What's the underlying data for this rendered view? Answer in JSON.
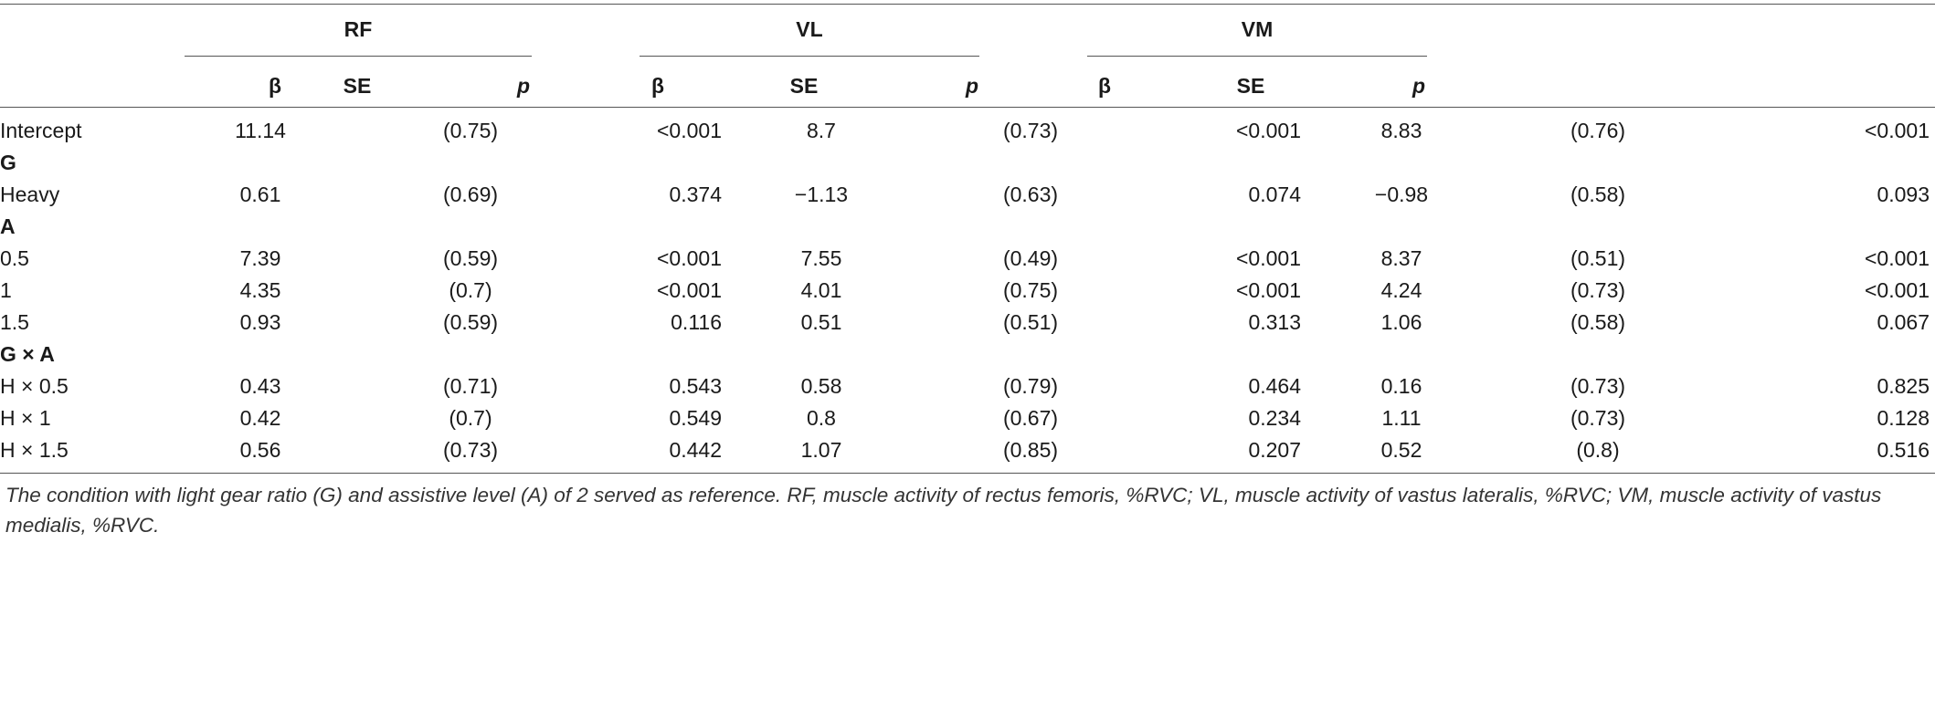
{
  "groups": {
    "rf": "RF",
    "vl": "VL",
    "vm": "VM"
  },
  "columns": {
    "beta": "β",
    "se": "SE",
    "p": "p"
  },
  "rows": [
    {
      "label": "Intercept",
      "rf_b": "11.14",
      "rf_se": "(0.75)",
      "rf_p": "<0.001",
      "vl_b": "8.7",
      "vl_se": "(0.73)",
      "vl_p": "<0.001",
      "vm_b": "8.83",
      "vm_se": "(0.76)",
      "vm_p": "<0.001"
    },
    {
      "label": "G"
    },
    {
      "label": "Heavy",
      "rf_b": "0.61",
      "rf_se": "(0.69)",
      "rf_p": "0.374",
      "vl_b": "−1.13",
      "vl_se": "(0.63)",
      "vl_p": "0.074",
      "vm_b": "−0.98",
      "vm_se": "(0.58)",
      "vm_p": "0.093"
    },
    {
      "label": "A"
    },
    {
      "label": "0.5",
      "rf_b": "7.39",
      "rf_se": "(0.59)",
      "rf_p": "<0.001",
      "vl_b": "7.55",
      "vl_se": "(0.49)",
      "vl_p": "<0.001",
      "vm_b": "8.37",
      "vm_se": "(0.51)",
      "vm_p": "<0.001"
    },
    {
      "label": "1",
      "rf_b": "4.35",
      "rf_se": "(0.7)",
      "rf_p": "<0.001",
      "vl_b": "4.01",
      "vl_se": "(0.75)",
      "vl_p": "<0.001",
      "vm_b": "4.24",
      "vm_se": "(0.73)",
      "vm_p": "<0.001"
    },
    {
      "label": "1.5",
      "rf_b": "0.93",
      "rf_se": "(0.59)",
      "rf_p": "0.116",
      "vl_b": "0.51",
      "vl_se": "(0.51)",
      "vl_p": "0.313",
      "vm_b": "1.06",
      "vm_se": "(0.58)",
      "vm_p": "0.067"
    },
    {
      "label": "G × A"
    },
    {
      "label": "H × 0.5",
      "rf_b": "0.43",
      "rf_se": "(0.71)",
      "rf_p": "0.543",
      "vl_b": "0.58",
      "vl_se": "(0.79)",
      "vl_p": "0.464",
      "vm_b": "0.16",
      "vm_se": "(0.73)",
      "vm_p": "0.825"
    },
    {
      "label": "H × 1",
      "rf_b": "0.42",
      "rf_se": "(0.7)",
      "rf_p": "0.549",
      "vl_b": "0.8",
      "vl_se": "(0.67)",
      "vl_p": "0.234",
      "vm_b": "1.11",
      "vm_se": "(0.73)",
      "vm_p": "0.128"
    },
    {
      "label": "H × 1.5",
      "rf_b": "0.56",
      "rf_se": "(0.73)",
      "rf_p": "0.442",
      "vl_b": "1.07",
      "vl_se": "(0.85)",
      "vl_p": "0.207",
      "vm_b": "0.52",
      "vm_se": "(0.8)",
      "vm_p": "0.516"
    }
  ],
  "footnote": "The condition with light gear ratio (G) and assistive level (A) of 2 served as reference. RF, muscle activity of rectus femoris, %RVC; VL, muscle activity of vastus lateralis, %RVC; VM, muscle activity of vastus medialis, %RVC."
}
